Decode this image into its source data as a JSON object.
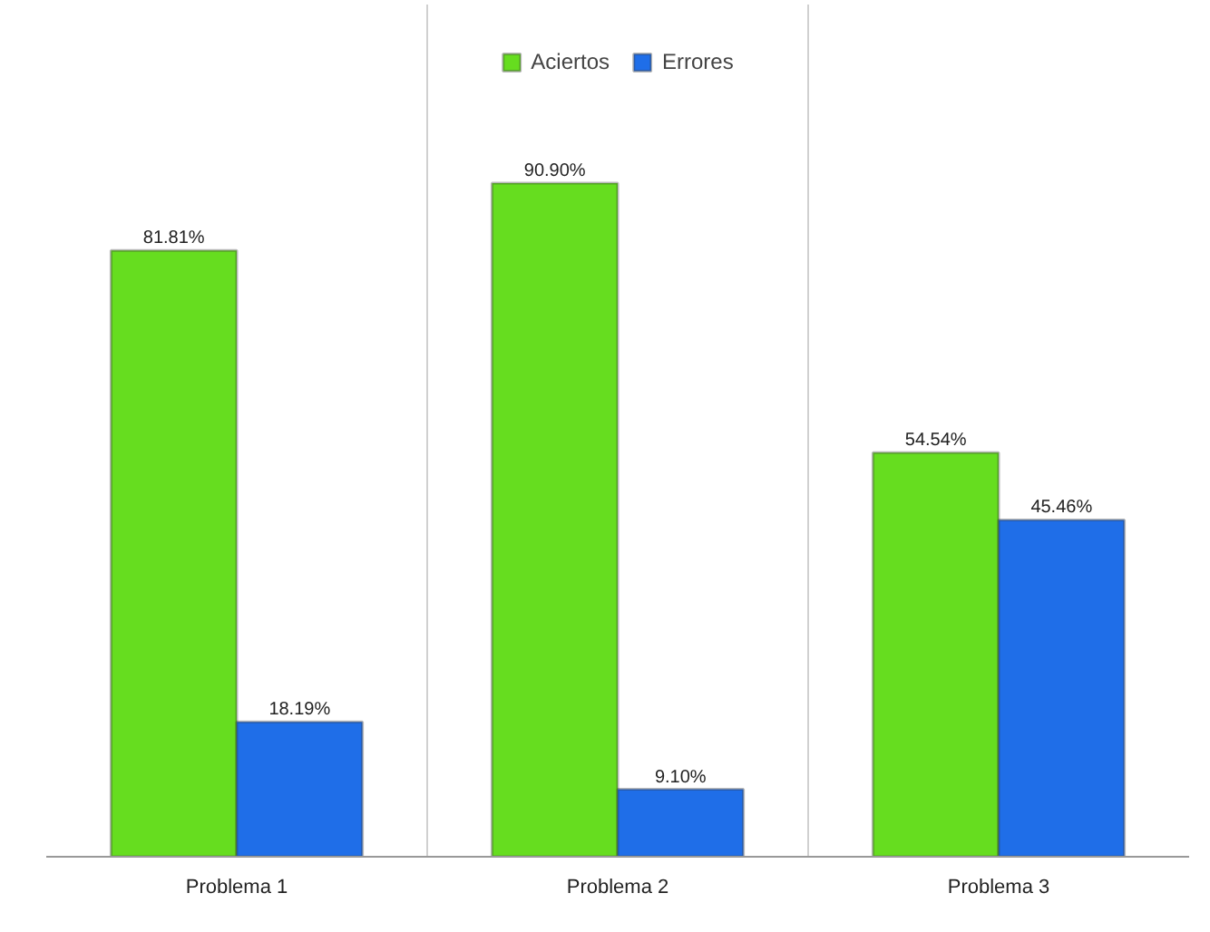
{
  "chart_data": {
    "type": "bar",
    "categories": [
      "Problema 1",
      "Problema 2",
      "Problema 3"
    ],
    "series": [
      {
        "name": "Aciertos",
        "color": "#66dd1f",
        "values": [
          81.81,
          90.9,
          54.54
        ],
        "value_labels": [
          "81.81%",
          "90.90%",
          "54.54%"
        ]
      },
      {
        "name": "Errores",
        "color": "#1f6ee8",
        "values": [
          18.19,
          9.1,
          45.46
        ],
        "value_labels": [
          "18.19%",
          "9.10%",
          "45.46%"
        ]
      }
    ],
    "ylim": [
      0,
      115
    ],
    "tick_labels": "x",
    "grid": "x",
    "legend": "top"
  }
}
